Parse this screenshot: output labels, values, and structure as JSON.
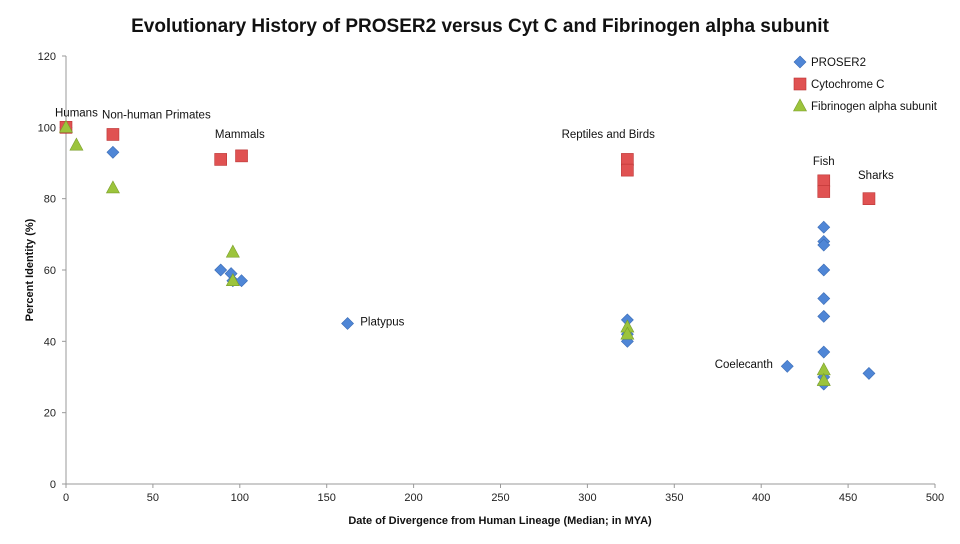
{
  "chart_data": {
    "type": "scatter",
    "title": "Evolutionary History of PROSER2 versus Cyt C and Fibrinogen alpha subunit",
    "xlabel": "Date of Divergence from Human Lineage (Median; in MYA)",
    "ylabel": "Percent Identity (%)",
    "xlim": [
      0,
      500
    ],
    "ylim": [
      0,
      120
    ],
    "xticks": [
      0,
      50,
      100,
      150,
      200,
      250,
      300,
      350,
      400,
      450,
      500
    ],
    "yticks": [
      0,
      20,
      40,
      60,
      80,
      100,
      120
    ],
    "grid": false,
    "legend": "top-right",
    "series": [
      {
        "name": "PROSER2",
        "marker": "diamond",
        "color": "#4f86d6",
        "points": [
          [
            0,
            100
          ],
          [
            27,
            93
          ],
          [
            89,
            60
          ],
          [
            95,
            59
          ],
          [
            96,
            57
          ],
          [
            101,
            57
          ],
          [
            162,
            45
          ],
          [
            323,
            46
          ],
          [
            323,
            42
          ],
          [
            323,
            40
          ],
          [
            415,
            33
          ],
          [
            436,
            72
          ],
          [
            436,
            68
          ],
          [
            436,
            67
          ],
          [
            436,
            60
          ],
          [
            436,
            52
          ],
          [
            436,
            47
          ],
          [
            436,
            37
          ],
          [
            436,
            30
          ],
          [
            436,
            28
          ],
          [
            462,
            31
          ]
        ]
      },
      {
        "name": "Cytochrome C",
        "marker": "square",
        "color": "#e05252",
        "points": [
          [
            0,
            100
          ],
          [
            27,
            98
          ],
          [
            89,
            91
          ],
          [
            101,
            92
          ],
          [
            323,
            91
          ],
          [
            323,
            88
          ],
          [
            436,
            85
          ],
          [
            436,
            82
          ],
          [
            462,
            80
          ]
        ]
      },
      {
        "name": "Fibrinogen alpha subunit",
        "marker": "triangle",
        "color": "#9cc43c",
        "points": [
          [
            0,
            100
          ],
          [
            6,
            95
          ],
          [
            27,
            83
          ],
          [
            96,
            65
          ],
          [
            96,
            57
          ],
          [
            323,
            44
          ],
          [
            323,
            42
          ],
          [
            436,
            32
          ],
          [
            436,
            29
          ]
        ]
      }
    ],
    "annotations": [
      {
        "text": "Humans",
        "x": 6,
        "y": 103
      },
      {
        "text": "Non-human Primates",
        "x": 52,
        "y": 102.5
      },
      {
        "text": "Mammals",
        "x": 100,
        "y": 97
      },
      {
        "text": "Platypus",
        "x": 182,
        "y": 44.5
      },
      {
        "text": "Reptiles and Birds",
        "x": 312,
        "y": 97
      },
      {
        "text": "Coelecanth",
        "x": 390,
        "y": 32.5
      },
      {
        "text": "Fish",
        "x": 436,
        "y": 89.5
      },
      {
        "text": "Sharks",
        "x": 466,
        "y": 85.5
      }
    ]
  }
}
